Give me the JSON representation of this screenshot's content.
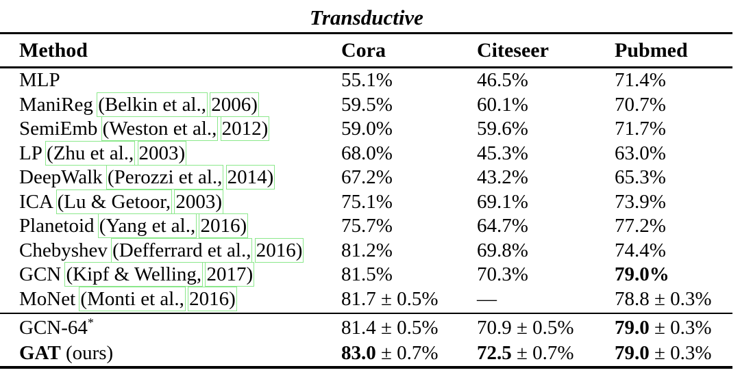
{
  "title": "Transductive",
  "colors": {
    "citation_link_box": "#8ae88a",
    "rule": "#000000",
    "text": "#000000",
    "background": "#ffffff"
  },
  "table": {
    "columns": [
      "Method",
      "Cora",
      "Citeseer",
      "Pubmed"
    ],
    "baseline_rows": [
      {
        "method": [
          {
            "t": "MLP"
          }
        ],
        "cells": [
          [
            {
              "t": "55.1%"
            }
          ],
          [
            {
              "t": "46.5%"
            }
          ],
          [
            {
              "t": "71.4%"
            }
          ]
        ]
      },
      {
        "method": [
          {
            "t": "ManiReg "
          },
          {
            "t": "(Belkin et al.,",
            "link": true
          },
          {
            "t": " "
          },
          {
            "t": "2006)",
            "link": true
          }
        ],
        "cells": [
          [
            {
              "t": "59.5%"
            }
          ],
          [
            {
              "t": "60.1%"
            }
          ],
          [
            {
              "t": "70.7%"
            }
          ]
        ]
      },
      {
        "method": [
          {
            "t": "SemiEmb "
          },
          {
            "t": "(Weston et al.,",
            "link": true
          },
          {
            "t": " "
          },
          {
            "t": "2012)",
            "link": true
          }
        ],
        "cells": [
          [
            {
              "t": "59.0%"
            }
          ],
          [
            {
              "t": "59.6%"
            }
          ],
          [
            {
              "t": "71.7%"
            }
          ]
        ]
      },
      {
        "method": [
          {
            "t": "LP "
          },
          {
            "t": "(Zhu et al.,",
            "link": true
          },
          {
            "t": " "
          },
          {
            "t": "2003)",
            "link": true
          }
        ],
        "cells": [
          [
            {
              "t": "68.0%"
            }
          ],
          [
            {
              "t": "45.3%"
            }
          ],
          [
            {
              "t": "63.0%"
            }
          ]
        ]
      },
      {
        "method": [
          {
            "t": "DeepWalk "
          },
          {
            "t": "(Perozzi et al.,",
            "link": true
          },
          {
            "t": " "
          },
          {
            "t": "2014)",
            "link": true
          }
        ],
        "cells": [
          [
            {
              "t": "67.2%"
            }
          ],
          [
            {
              "t": "43.2%"
            }
          ],
          [
            {
              "t": "65.3%"
            }
          ]
        ]
      },
      {
        "method": [
          {
            "t": "ICA "
          },
          {
            "t": "(Lu & Getoor,",
            "link": true
          },
          {
            "t": " "
          },
          {
            "t": "2003)",
            "link": true
          }
        ],
        "cells": [
          [
            {
              "t": "75.1%"
            }
          ],
          [
            {
              "t": "69.1%"
            }
          ],
          [
            {
              "t": "73.9%"
            }
          ]
        ]
      },
      {
        "method": [
          {
            "t": "Planetoid "
          },
          {
            "t": "(Yang et al.,",
            "link": true
          },
          {
            "t": " "
          },
          {
            "t": "2016)",
            "link": true
          }
        ],
        "cells": [
          [
            {
              "t": "75.7%"
            }
          ],
          [
            {
              "t": "64.7%"
            }
          ],
          [
            {
              "t": "77.2%"
            }
          ]
        ]
      },
      {
        "method": [
          {
            "t": "Chebyshev "
          },
          {
            "t": "(Defferrard et al.,",
            "link": true
          },
          {
            "t": " "
          },
          {
            "t": "2016)",
            "link": true
          }
        ],
        "cells": [
          [
            {
              "t": "81.2%"
            }
          ],
          [
            {
              "t": "69.8%"
            }
          ],
          [
            {
              "t": "74.4%"
            }
          ]
        ]
      },
      {
        "method": [
          {
            "t": "GCN "
          },
          {
            "t": "(Kipf & Welling,",
            "link": true
          },
          {
            "t": " "
          },
          {
            "t": "2017)",
            "link": true
          }
        ],
        "cells": [
          [
            {
              "t": "81.5%"
            }
          ],
          [
            {
              "t": "70.3%"
            }
          ],
          [
            {
              "t": "79.0%",
              "b": true
            }
          ]
        ]
      },
      {
        "method": [
          {
            "t": "MoNet "
          },
          {
            "t": "(Monti et al.,",
            "link": true
          },
          {
            "t": " "
          },
          {
            "t": "2016)",
            "link": true
          }
        ],
        "cells": [
          [
            {
              "t": "81.7 ± 0.5%"
            }
          ],
          [
            {
              "t": "—"
            }
          ],
          [
            {
              "t": "78.8 ± 0.3%"
            }
          ]
        ]
      }
    ],
    "final_rows": [
      {
        "method": [
          {
            "t": "GCN-64"
          },
          {
            "t": "*",
            "sup": true
          }
        ],
        "cells": [
          [
            {
              "t": "81.4 ± 0.5%"
            }
          ],
          [
            {
              "t": "70.9 ± 0.5%"
            }
          ],
          [
            {
              "t": "79.0",
              "b": true
            },
            {
              "t": " ± 0.3%"
            }
          ]
        ]
      },
      {
        "method": [
          {
            "t": "GAT",
            "b": true
          },
          {
            "t": " (ours)"
          }
        ],
        "cells": [
          [
            {
              "t": "83.0",
              "b": true
            },
            {
              "t": " ± 0.7%"
            }
          ],
          [
            {
              "t": "72.5",
              "b": true
            },
            {
              "t": " ± 0.7%"
            }
          ],
          [
            {
              "t": "79.0",
              "b": true
            },
            {
              "t": " ± 0.3%"
            }
          ]
        ]
      }
    ]
  }
}
